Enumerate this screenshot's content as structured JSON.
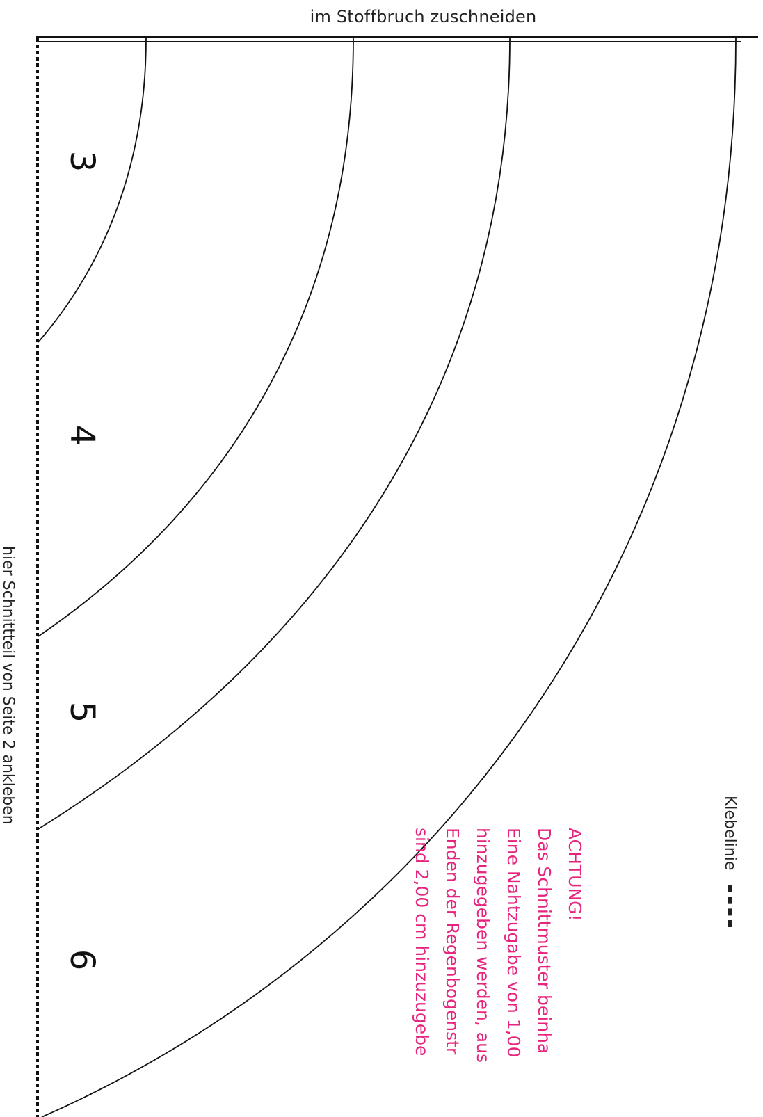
{
  "fold_label": "im Stoffbruch zuschneiden",
  "glue_label": "hier Schnittteil von Seite 2 ankleben",
  "legend": {
    "label": "Klebelinie"
  },
  "sizes": [
    "3",
    "4",
    "5",
    "6"
  ],
  "warning": {
    "title": "ACHTUNG!",
    "lines": [
      "Das Schnittmuster beinha",
      "Eine Nahtzugabe von 1,00",
      "hinzugegeben werden, aus",
      "Enden der Regenbogenstr",
      "sind 2,00 cm hinzuzugebe"
    ]
  },
  "colors": {
    "ink": "#111111",
    "warning": "#e6237d"
  }
}
